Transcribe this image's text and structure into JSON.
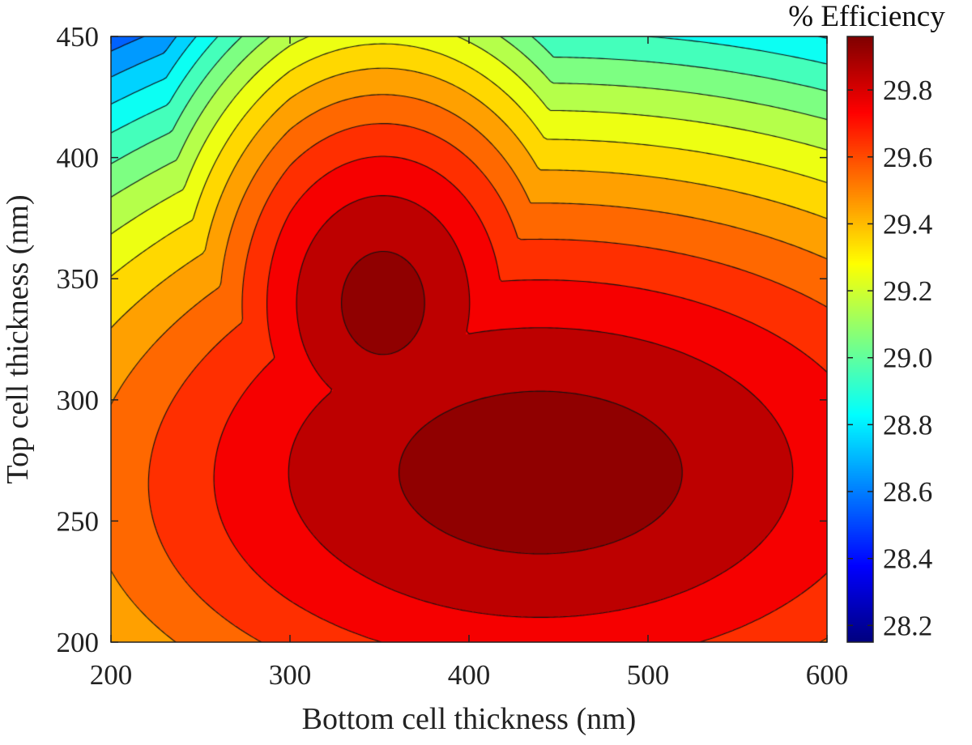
{
  "chart_data": {
    "type": "contour",
    "xlabel": "Bottom cell thickness (nm)",
    "ylabel": "Top cell thickness (nm)",
    "xlim": [
      200,
      600
    ],
    "ylim": [
      200,
      450
    ],
    "xticks": [
      "200",
      "300",
      "400",
      "500",
      "600"
    ],
    "yticks": [
      "200",
      "250",
      "300",
      "350",
      "400",
      "450"
    ],
    "colorbar": {
      "title": "% Efficiency",
      "range": [
        28.15,
        29.96
      ],
      "ticks": [
        "28.2",
        "28.4",
        "28.6",
        "28.8",
        "29.0",
        "29.2",
        "29.4",
        "29.6",
        "29.8"
      ],
      "colormap": "jet"
    },
    "z_max": 29.96,
    "contour_levels": [
      28.2,
      28.3,
      28.4,
      28.5,
      28.6,
      28.7,
      28.8,
      28.9,
      29.0,
      29.1,
      29.2,
      29.3,
      29.4,
      29.5,
      29.6,
      29.7,
      29.8,
      29.9
    ],
    "peaks": [
      {
        "x": 440,
        "y": 270,
        "z": 29.96
      },
      {
        "x": 352,
        "y": 340,
        "z": 29.95
      }
    ],
    "grid": false
  }
}
